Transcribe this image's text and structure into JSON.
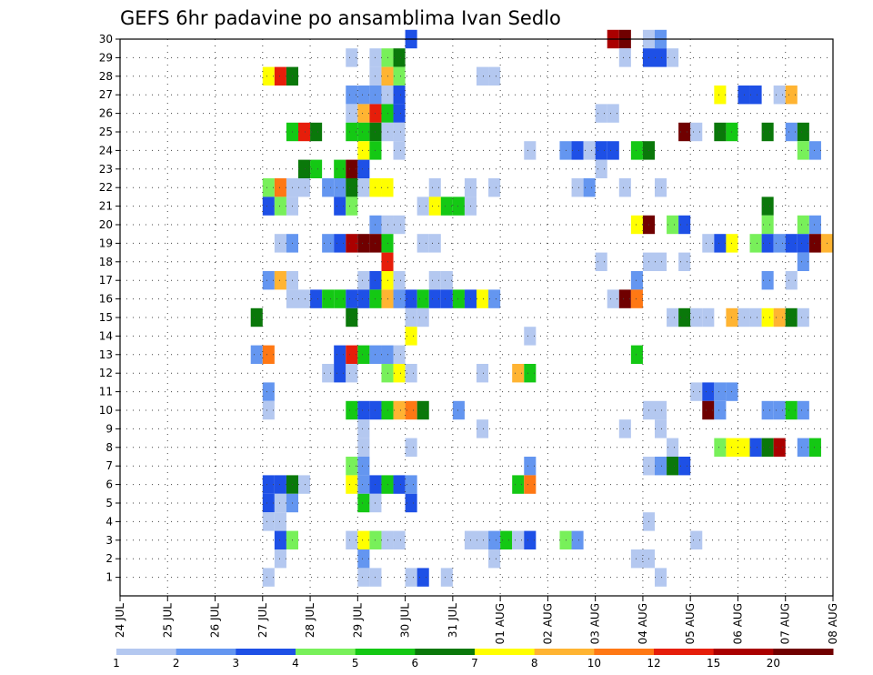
{
  "chart_data": {
    "type": "heatmap",
    "title": "GEFS 6hr padavine po ansamblima Ivan Sedlo",
    "xlabel": "",
    "ylabel": "",
    "x_tick_labels": [
      "24 JUL",
      "25 JUL",
      "26 JUL",
      "27 JUL",
      "28 JUL",
      "29 JUL",
      "30 JUL",
      "31 JUL",
      "01 AUG",
      "02 AUG",
      "03 AUG",
      "04 AUG",
      "05 AUG",
      "06 AUG",
      "07 AUG",
      "08 AUG"
    ],
    "y_tick_labels": [
      "1",
      "2",
      "3",
      "4",
      "5",
      "6",
      "7",
      "8",
      "9",
      "10",
      "11",
      "12",
      "13",
      "14",
      "15",
      "16",
      "17",
      "18",
      "19",
      "20",
      "21",
      "22",
      "23",
      "24",
      "25",
      "26",
      "27",
      "28",
      "29",
      "30"
    ],
    "time_steps_per_day": 4,
    "grid": true,
    "colorbar": {
      "labels": [
        "1",
        "2",
        "3",
        "4",
        "5",
        "6",
        "7",
        "8",
        "10",
        "12",
        "15",
        "20"
      ],
      "colors": [
        "#b4c8f0",
        "#6496f0",
        "#1e50e6",
        "#78f05a",
        "#14c814",
        "#0a780a",
        "#ffff00",
        "#ffb432",
        "#ff7814",
        "#e61e0a",
        "#aa0000",
        "#700000"
      ]
    },
    "cells": [
      [
        30,
        6.0,
        3
      ],
      [
        30,
        10.25,
        11
      ],
      [
        30,
        10.5,
        12
      ],
      [
        30,
        11.0,
        1
      ],
      [
        30,
        11.25,
        2
      ],
      [
        29,
        4.75,
        1
      ],
      [
        29,
        5.25,
        1
      ],
      [
        29,
        5.5,
        4
      ],
      [
        29,
        5.75,
        6
      ],
      [
        29,
        10.5,
        1
      ],
      [
        29,
        11.0,
        3
      ],
      [
        29,
        11.25,
        3
      ],
      [
        29,
        11.5,
        1
      ],
      [
        28,
        3.0,
        7
      ],
      [
        28,
        3.25,
        10
      ],
      [
        28,
        3.5,
        6
      ],
      [
        28,
        5.25,
        1
      ],
      [
        28,
        5.5,
        8
      ],
      [
        28,
        5.75,
        4
      ],
      [
        28,
        7.5,
        1
      ],
      [
        28,
        7.75,
        1
      ],
      [
        27,
        4.75,
        2
      ],
      [
        27,
        5.0,
        2
      ],
      [
        27,
        5.25,
        2
      ],
      [
        27,
        5.5,
        1
      ],
      [
        27,
        5.75,
        3
      ],
      [
        27,
        12.5,
        7
      ],
      [
        27,
        13.0,
        3
      ],
      [
        27,
        13.25,
        3
      ],
      [
        27,
        13.75,
        1
      ],
      [
        27,
        14.0,
        8
      ],
      [
        26,
        4.75,
        1
      ],
      [
        26,
        5.0,
        8
      ],
      [
        26,
        5.25,
        10
      ],
      [
        26,
        5.5,
        5
      ],
      [
        26,
        5.75,
        3
      ],
      [
        26,
        10.0,
        1
      ],
      [
        26,
        10.25,
        1
      ],
      [
        25,
        3.5,
        5
      ],
      [
        25,
        3.75,
        10
      ],
      [
        25,
        4.0,
        6
      ],
      [
        25,
        4.75,
        5
      ],
      [
        25,
        5.0,
        5
      ],
      [
        25,
        5.25,
        6
      ],
      [
        25,
        5.5,
        1
      ],
      [
        25,
        5.75,
        1
      ],
      [
        25,
        11.75,
        12
      ],
      [
        25,
        12.0,
        1
      ],
      [
        25,
        12.5,
        6
      ],
      [
        25,
        12.75,
        5
      ],
      [
        25,
        13.5,
        6
      ],
      [
        25,
        14.0,
        2
      ],
      [
        25,
        14.25,
        6
      ],
      [
        24,
        5.0,
        7
      ],
      [
        24,
        5.25,
        5
      ],
      [
        24,
        5.75,
        1
      ],
      [
        24,
        8.5,
        1
      ],
      [
        24,
        9.25,
        2
      ],
      [
        24,
        9.5,
        3
      ],
      [
        24,
        9.75,
        1
      ],
      [
        24,
        10.0,
        3
      ],
      [
        24,
        10.25,
        3
      ],
      [
        24,
        10.75,
        5
      ],
      [
        24,
        11.0,
        6
      ],
      [
        24,
        14.25,
        4
      ],
      [
        24,
        14.5,
        2
      ],
      [
        23,
        3.75,
        6
      ],
      [
        23,
        4.0,
        5
      ],
      [
        23,
        4.5,
        5
      ],
      [
        23,
        4.75,
        12
      ],
      [
        23,
        5.0,
        3
      ],
      [
        23,
        10.0,
        1
      ],
      [
        22,
        3.0,
        4
      ],
      [
        22,
        3.25,
        9
      ],
      [
        22,
        3.5,
        1
      ],
      [
        22,
        3.75,
        1
      ],
      [
        22,
        4.25,
        2
      ],
      [
        22,
        4.5,
        2
      ],
      [
        22,
        4.75,
        6
      ],
      [
        22,
        5.0,
        1
      ],
      [
        22,
        5.25,
        7
      ],
      [
        22,
        5.5,
        7
      ],
      [
        22,
        6.5,
        1
      ],
      [
        22,
        7.25,
        1
      ],
      [
        22,
        7.75,
        1
      ],
      [
        22,
        9.5,
        1
      ],
      [
        22,
        9.75,
        2
      ],
      [
        22,
        10.5,
        1
      ],
      [
        22,
        11.25,
        1
      ],
      [
        21,
        3.0,
        3
      ],
      [
        21,
        3.25,
        4
      ],
      [
        21,
        3.5,
        1
      ],
      [
        21,
        4.5,
        3
      ],
      [
        21,
        4.75,
        4
      ],
      [
        21,
        6.25,
        1
      ],
      [
        21,
        6.5,
        7
      ],
      [
        21,
        6.75,
        5
      ],
      [
        21,
        7.0,
        5
      ],
      [
        21,
        7.25,
        1
      ],
      [
        21,
        13.5,
        6
      ],
      [
        20,
        5.25,
        2
      ],
      [
        20,
        5.5,
        1
      ],
      [
        20,
        5.75,
        1
      ],
      [
        20,
        10.75,
        7
      ],
      [
        20,
        11.0,
        12
      ],
      [
        20,
        11.5,
        4
      ],
      [
        20,
        11.75,
        3
      ],
      [
        20,
        13.5,
        4
      ],
      [
        20,
        14.25,
        4
      ],
      [
        20,
        14.5,
        2
      ],
      [
        19,
        3.25,
        1
      ],
      [
        19,
        3.5,
        2
      ],
      [
        19,
        4.25,
        2
      ],
      [
        19,
        4.5,
        3
      ],
      [
        19,
        4.75,
        11
      ],
      [
        19,
        5.0,
        12
      ],
      [
        19,
        5.25,
        12
      ],
      [
        19,
        5.5,
        5
      ],
      [
        19,
        6.25,
        1
      ],
      [
        19,
        6.5,
        1
      ],
      [
        19,
        12.25,
        1
      ],
      [
        19,
        12.5,
        3
      ],
      [
        19,
        12.75,
        7
      ],
      [
        19,
        13.25,
        4
      ],
      [
        19,
        13.5,
        3
      ],
      [
        19,
        13.75,
        2
      ],
      [
        19,
        14.0,
        3
      ],
      [
        19,
        14.25,
        3
      ],
      [
        19,
        14.5,
        12
      ],
      [
        19,
        14.75,
        8
      ],
      [
        18,
        5.5,
        10
      ],
      [
        18,
        10.0,
        1
      ],
      [
        18,
        11.0,
        1
      ],
      [
        18,
        11.25,
        1
      ],
      [
        18,
        11.75,
        1
      ],
      [
        18,
        14.25,
        2
      ],
      [
        17,
        3.0,
        2
      ],
      [
        17,
        3.25,
        8
      ],
      [
        17,
        3.5,
        1
      ],
      [
        17,
        5.0,
        1
      ],
      [
        17,
        5.25,
        3
      ],
      [
        17,
        5.5,
        7
      ],
      [
        17,
        5.75,
        1
      ],
      [
        17,
        6.5,
        1
      ],
      [
        17,
        6.75,
        1
      ],
      [
        17,
        10.75,
        2
      ],
      [
        17,
        13.5,
        2
      ],
      [
        17,
        14.0,
        1
      ],
      [
        16,
        3.5,
        1
      ],
      [
        16,
        3.75,
        1
      ],
      [
        16,
        4.0,
        3
      ],
      [
        16,
        4.25,
        5
      ],
      [
        16,
        4.5,
        5
      ],
      [
        16,
        4.75,
        3
      ],
      [
        16,
        5.0,
        3
      ],
      [
        16,
        5.25,
        5
      ],
      [
        16,
        5.5,
        8
      ],
      [
        16,
        5.75,
        2
      ],
      [
        16,
        6.0,
        3
      ],
      [
        16,
        6.25,
        5
      ],
      [
        16,
        6.5,
        3
      ],
      [
        16,
        6.75,
        3
      ],
      [
        16,
        7.0,
        5
      ],
      [
        16,
        7.25,
        3
      ],
      [
        16,
        7.5,
        7
      ],
      [
        16,
        7.75,
        2
      ],
      [
        16,
        10.25,
        1
      ],
      [
        16,
        10.5,
        12
      ],
      [
        16,
        10.75,
        9
      ],
      [
        15,
        2.75,
        6
      ],
      [
        15,
        4.75,
        6
      ],
      [
        15,
        6.0,
        1
      ],
      [
        15,
        6.25,
        1
      ],
      [
        15,
        11.5,
        1
      ],
      [
        15,
        11.75,
        6
      ],
      [
        15,
        12.0,
        1
      ],
      [
        15,
        12.25,
        1
      ],
      [
        15,
        12.75,
        8
      ],
      [
        15,
        13.0,
        1
      ],
      [
        15,
        13.25,
        1
      ],
      [
        15,
        13.5,
        7
      ],
      [
        15,
        13.75,
        8
      ],
      [
        15,
        14.0,
        6
      ],
      [
        15,
        14.25,
        1
      ],
      [
        14,
        6.0,
        7
      ],
      [
        14,
        8.5,
        1
      ],
      [
        13,
        2.75,
        2
      ],
      [
        13,
        3.0,
        9
      ],
      [
        13,
        4.5,
        3
      ],
      [
        13,
        4.75,
        10
      ],
      [
        13,
        5.0,
        5
      ],
      [
        13,
        5.25,
        2
      ],
      [
        13,
        5.5,
        2
      ],
      [
        13,
        5.75,
        1
      ],
      [
        13,
        10.75,
        5
      ],
      [
        12,
        4.25,
        1
      ],
      [
        12,
        4.5,
        3
      ],
      [
        12,
        4.75,
        1
      ],
      [
        12,
        5.5,
        4
      ],
      [
        12,
        5.75,
        7
      ],
      [
        12,
        6.0,
        1
      ],
      [
        12,
        7.5,
        1
      ],
      [
        12,
        8.25,
        8
      ],
      [
        12,
        8.5,
        5
      ],
      [
        11,
        3.0,
        2
      ],
      [
        11,
        12.0,
        1
      ],
      [
        11,
        12.25,
        3
      ],
      [
        11,
        12.5,
        2
      ],
      [
        11,
        12.75,
        2
      ],
      [
        10,
        3.0,
        1
      ],
      [
        10,
        4.75,
        5
      ],
      [
        10,
        5.0,
        3
      ],
      [
        10,
        5.25,
        3
      ],
      [
        10,
        5.5,
        5
      ],
      [
        10,
        5.75,
        8
      ],
      [
        10,
        6.0,
        9
      ],
      [
        10,
        6.25,
        6
      ],
      [
        10,
        7.0,
        2
      ],
      [
        10,
        11.0,
        1
      ],
      [
        10,
        11.25,
        1
      ],
      [
        10,
        12.25,
        12
      ],
      [
        10,
        12.5,
        2
      ],
      [
        10,
        13.5,
        2
      ],
      [
        10,
        13.75,
        2
      ],
      [
        10,
        14.0,
        5
      ],
      [
        10,
        14.25,
        2
      ],
      [
        9,
        5.0,
        1
      ],
      [
        9,
        7.5,
        1
      ],
      [
        9,
        10.5,
        1
      ],
      [
        9,
        11.25,
        1
      ],
      [
        8,
        5.0,
        1
      ],
      [
        8,
        6.0,
        1
      ],
      [
        8,
        11.5,
        1
      ],
      [
        8,
        12.5,
        4
      ],
      [
        8,
        12.75,
        7
      ],
      [
        8,
        13.0,
        7
      ],
      [
        8,
        13.25,
        3
      ],
      [
        8,
        13.5,
        6
      ],
      [
        8,
        13.75,
        11
      ],
      [
        8,
        14.25,
        2
      ],
      [
        8,
        14.5,
        5
      ],
      [
        7,
        4.75,
        4
      ],
      [
        7,
        5.0,
        2
      ],
      [
        7,
        8.5,
        2
      ],
      [
        7,
        11.0,
        1
      ],
      [
        7,
        11.25,
        2
      ],
      [
        7,
        11.5,
        6
      ],
      [
        7,
        11.75,
        3
      ],
      [
        6,
        3.0,
        3
      ],
      [
        6,
        3.25,
        3
      ],
      [
        6,
        3.5,
        6
      ],
      [
        6,
        3.75,
        1
      ],
      [
        6,
        4.75,
        7
      ],
      [
        6,
        5.0,
        2
      ],
      [
        6,
        5.25,
        3
      ],
      [
        6,
        5.5,
        5
      ],
      [
        6,
        5.75,
        3
      ],
      [
        6,
        6.0,
        2
      ],
      [
        6,
        8.25,
        5
      ],
      [
        6,
        8.5,
        9
      ],
      [
        5,
        3.0,
        3
      ],
      [
        5,
        3.25,
        1
      ],
      [
        5,
        3.5,
        2
      ],
      [
        5,
        5.0,
        5
      ],
      [
        5,
        5.25,
        1
      ],
      [
        5,
        6.0,
        3
      ],
      [
        4,
        3.0,
        1
      ],
      [
        4,
        3.25,
        1
      ],
      [
        4,
        11.0,
        1
      ],
      [
        3,
        3.25,
        3
      ],
      [
        3,
        3.5,
        4
      ],
      [
        3,
        4.75,
        1
      ],
      [
        3,
        5.0,
        7
      ],
      [
        3,
        5.25,
        4
      ],
      [
        3,
        5.5,
        1
      ],
      [
        3,
        5.75,
        1
      ],
      [
        3,
        7.25,
        1
      ],
      [
        3,
        7.5,
        1
      ],
      [
        3,
        7.75,
        2
      ],
      [
        3,
        8.0,
        5
      ],
      [
        3,
        8.25,
        1
      ],
      [
        3,
        8.5,
        3
      ],
      [
        3,
        9.25,
        4
      ],
      [
        3,
        9.5,
        2
      ],
      [
        3,
        12.0,
        1
      ],
      [
        2,
        3.25,
        1
      ],
      [
        2,
        5.0,
        2
      ],
      [
        2,
        7.75,
        1
      ],
      [
        2,
        10.75,
        1
      ],
      [
        2,
        11.0,
        1
      ],
      [
        1,
        3.0,
        1
      ],
      [
        1,
        5.0,
        1
      ],
      [
        1,
        5.25,
        1
      ],
      [
        1,
        6.0,
        1
      ],
      [
        1,
        6.25,
        3
      ],
      [
        1,
        6.75,
        1
      ],
      [
        1,
        11.25,
        1
      ]
    ]
  }
}
